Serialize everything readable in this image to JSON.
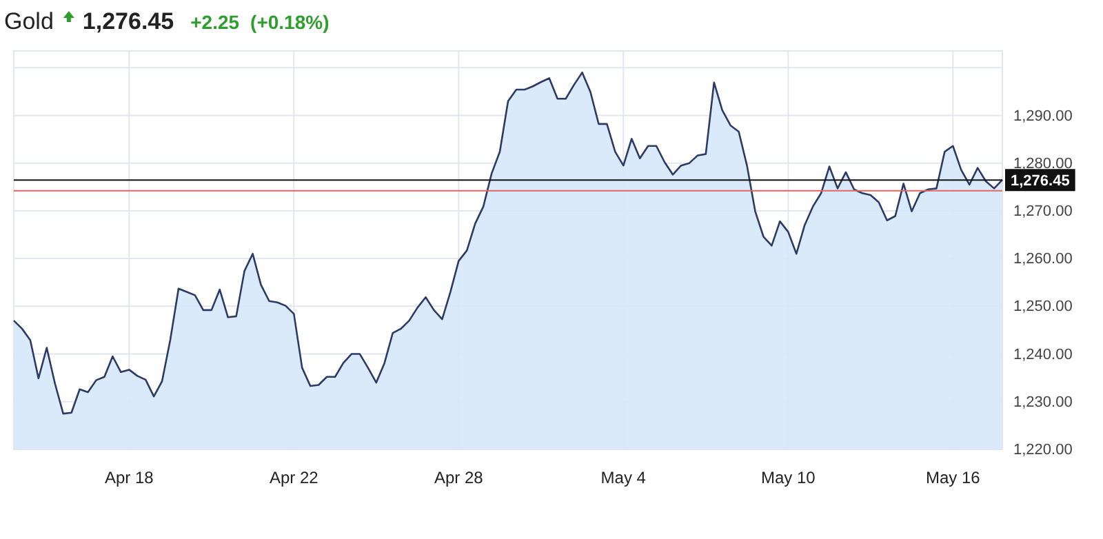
{
  "chart_data": {
    "type": "area",
    "title": "Gold",
    "annotations": [
      "1,276.45",
      "+2.25",
      "(+0.18%)"
    ],
    "categories": [
      null,
      null,
      null,
      null,
      null,
      null,
      null,
      null,
      null,
      null,
      null,
      null,
      null,
      null,
      "Apr 18",
      null,
      null,
      null,
      null,
      null,
      null,
      null,
      null,
      null,
      null,
      null,
      null,
      null,
      null,
      null,
      null,
      null,
      null,
      null,
      "Apr 22",
      null,
      null,
      null,
      null,
      null,
      null,
      null,
      null,
      null,
      null,
      null,
      null,
      null,
      null,
      null,
      null,
      null,
      null,
      null,
      "Apr 28",
      null,
      null,
      null,
      null,
      null,
      null,
      null,
      null,
      null,
      null,
      null,
      null,
      null,
      null,
      null,
      null,
      null,
      null,
      null,
      "May 4",
      null,
      null,
      null,
      null,
      null,
      null,
      null,
      null,
      null,
      null,
      null,
      null,
      null,
      null,
      null,
      null,
      null,
      null,
      null,
      "May 10",
      null,
      null,
      null,
      null,
      null,
      null,
      null,
      null,
      null,
      null,
      null,
      null,
      null,
      null,
      null,
      null,
      null,
      null,
      null,
      "May 16",
      null,
      null,
      null,
      null,
      null,
      null
    ],
    "series": [
      {
        "color": "#2c3a66",
        "values": [
          1247.0,
          1245.3,
          1242.9,
          1234.9,
          1241.3,
          1233.8,
          1227.5,
          1227.7,
          1232.6,
          1232.0,
          1234.5,
          1235.2,
          1239.5,
          1236.2,
          1236.7,
          1235.4,
          1234.6,
          1231.1,
          1234.3,
          1243.0,
          1253.7,
          1253.0,
          1252.3,
          1249.2,
          1249.2,
          1253.5,
          1247.7,
          1247.9,
          1257.4,
          1261.0,
          1254.5,
          1251.1,
          1250.8,
          1250.1,
          1248.4,
          1237.1,
          1233.3,
          1233.5,
          1235.2,
          1235.2,
          1238.1,
          1240.0,
          1240.0,
          1237.1,
          1234.0,
          1238.1,
          1244.4,
          1245.3,
          1247.0,
          1249.7,
          1251.9,
          1249.2,
          1247.3,
          1253.0,
          1259.5,
          1261.7,
          1267.3,
          1270.9,
          1277.8,
          1282.4,
          1293.0,
          1295.4,
          1295.4,
          1296.1,
          1297.0,
          1297.8,
          1293.5,
          1293.5,
          1296.4,
          1299.0,
          1294.9,
          1288.2,
          1288.2,
          1282.4,
          1279.5,
          1285.1,
          1281.0,
          1283.6,
          1283.6,
          1280.2,
          1277.6,
          1279.5,
          1280.0,
          1281.6,
          1281.9,
          1296.9,
          1291.1,
          1287.9,
          1286.6,
          1279.5,
          1269.9,
          1264.6,
          1262.7,
          1267.8,
          1265.6,
          1261.0,
          1267.0,
          1270.9,
          1273.7,
          1279.3,
          1274.7,
          1278.1,
          1274.5,
          1273.7,
          1273.3,
          1271.8,
          1268.0,
          1268.9,
          1275.7,
          1269.9,
          1273.7,
          1274.5,
          1274.7,
          1282.4,
          1283.6,
          1278.6,
          1275.5,
          1279.0,
          1276.2,
          1274.7,
          1276.5
        ]
      }
    ],
    "ylim": [
      1220,
      1303.5
    ],
    "yticks": [
      {
        "value": 1220,
        "label": "1,220.00"
      },
      {
        "value": 1230,
        "label": "1,230.00"
      },
      {
        "value": 1240,
        "label": "1,240.00"
      },
      {
        "value": 1250,
        "label": "1,250.00"
      },
      {
        "value": 1260,
        "label": "1,260.00"
      },
      {
        "value": 1270,
        "label": "1,270.00"
      },
      {
        "value": 1280,
        "label": "1,280.00"
      },
      {
        "value": 1290,
        "label": "1,290.00"
      },
      {
        "value": 1300,
        "label": null
      }
    ],
    "ref_lines": [
      {
        "axis": "y",
        "value": 1274.2,
        "color": "#e06666"
      },
      {
        "axis": "y",
        "value": 1276.45,
        "label": "1,276.45",
        "color": "#111111"
      }
    ],
    "grid": true
  }
}
